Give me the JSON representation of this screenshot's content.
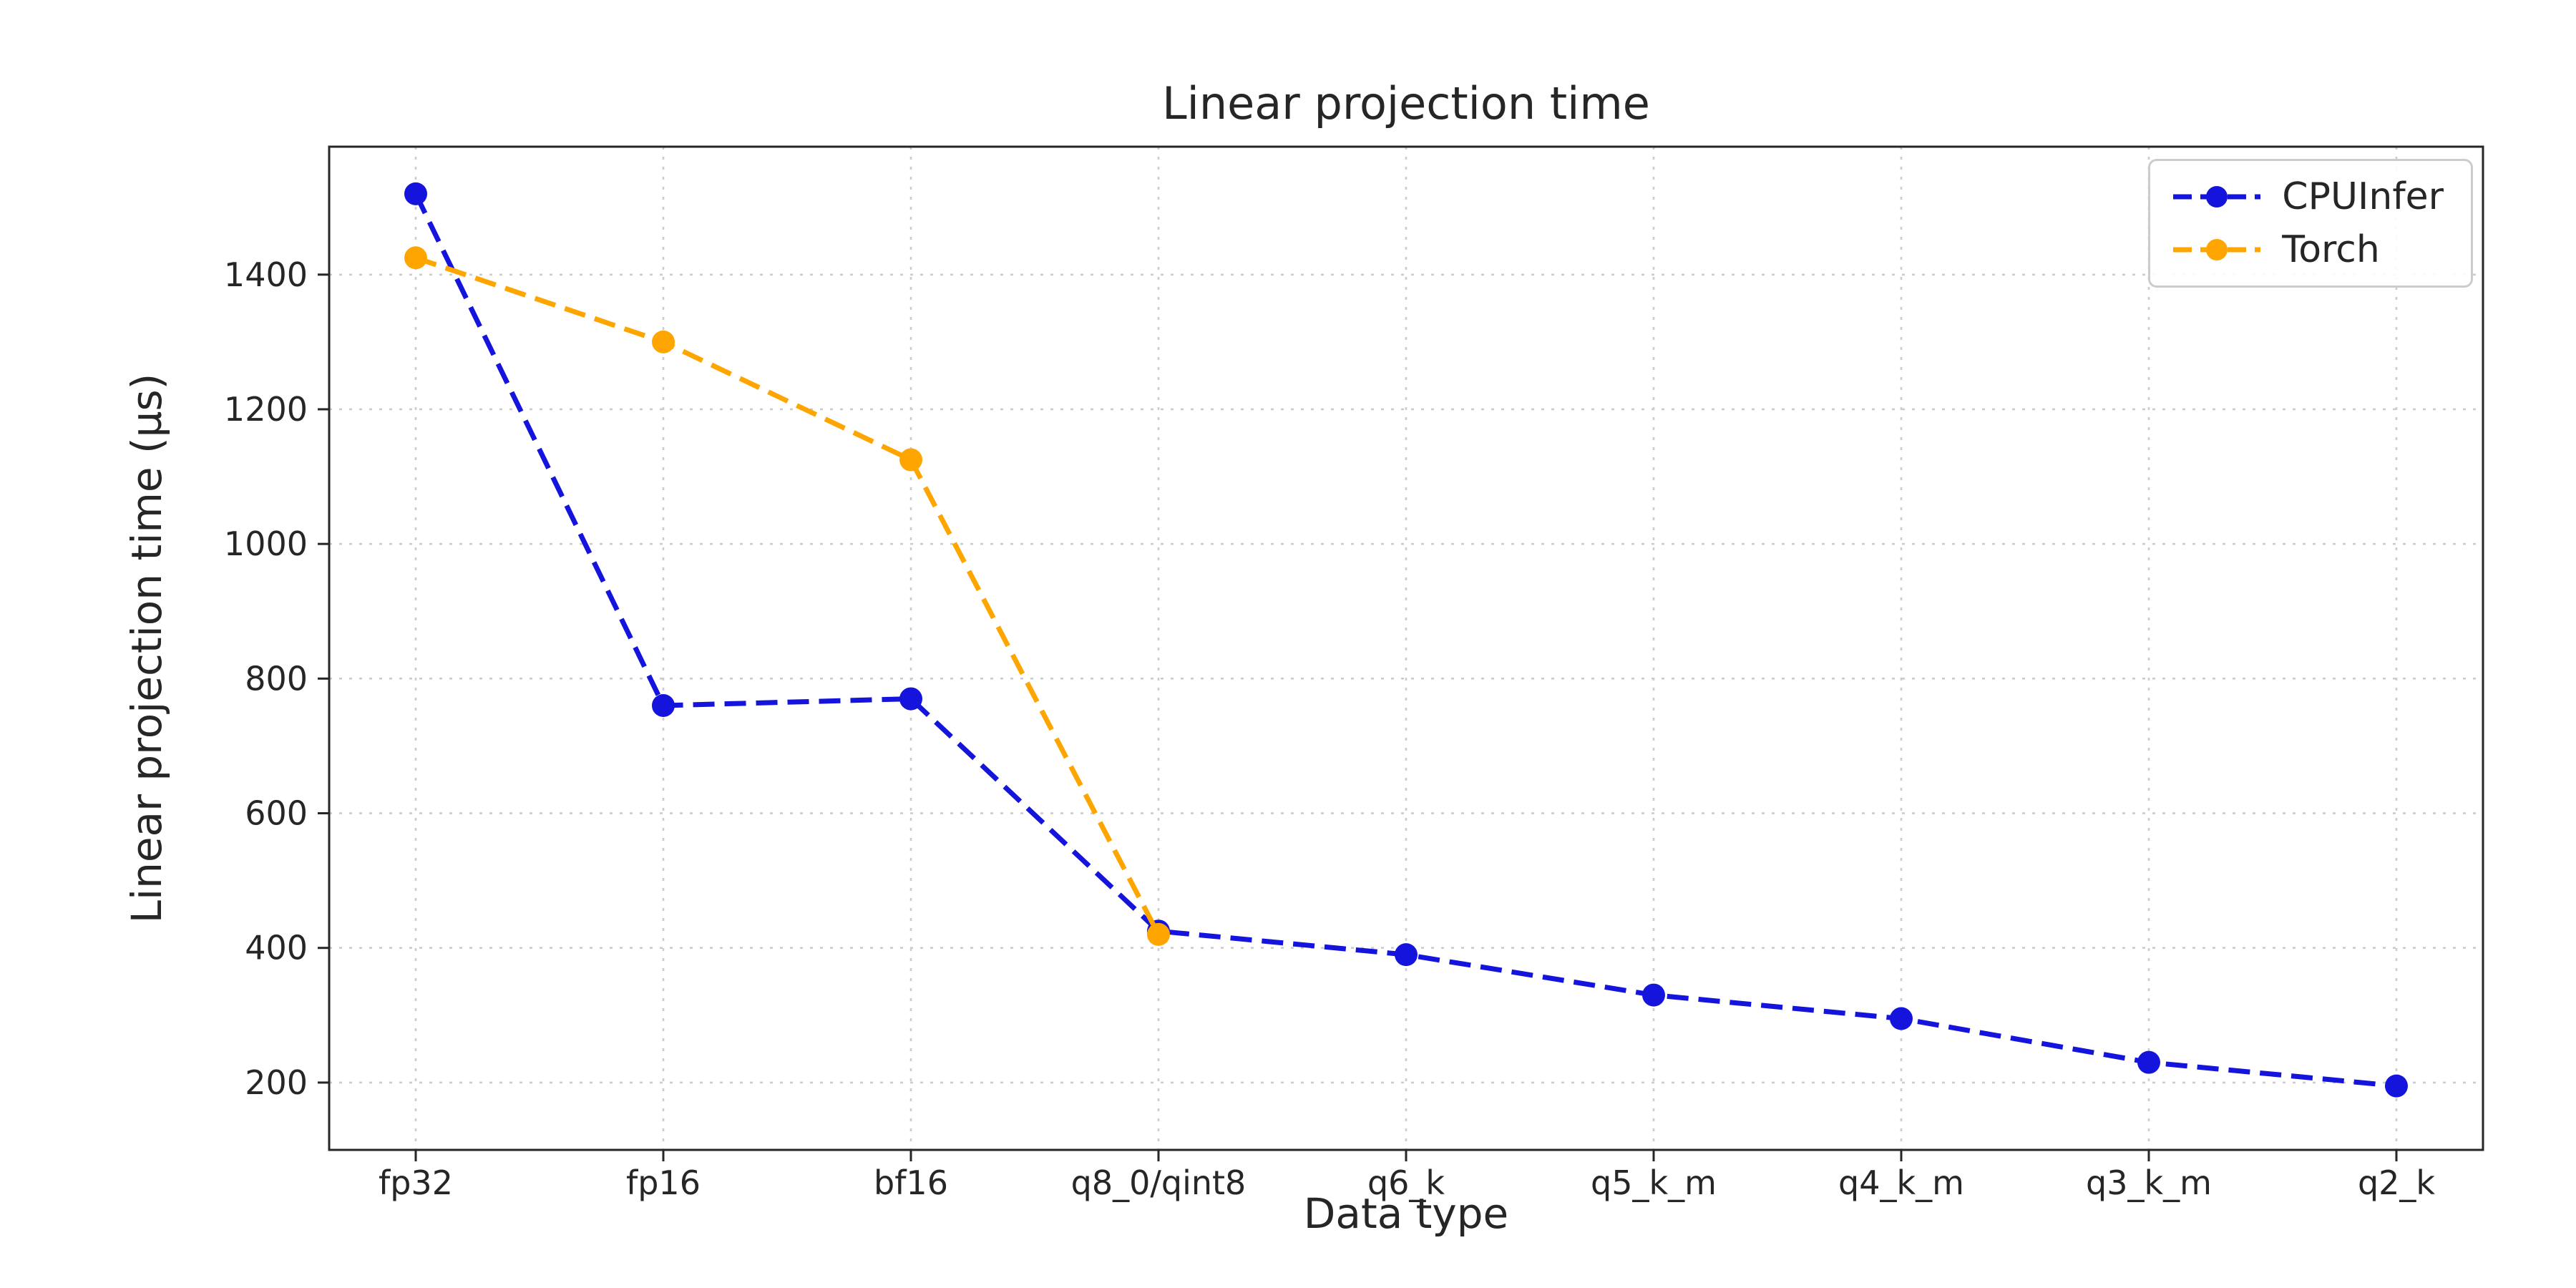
{
  "chart_data": {
    "type": "line",
    "title": "Linear projection time",
    "xlabel": "Data type",
    "ylabel": "Linear projection time (µs)",
    "categories": [
      "fp32",
      "fp16",
      "bf16",
      "q8_0/qint8",
      "q6_k",
      "q5_k_m",
      "q4_k_m",
      "q3_k_m",
      "q2_k"
    ],
    "series": [
      {
        "name": "CPUInfer",
        "color": "#1414dc",
        "values": [
          1520,
          760,
          770,
          425,
          390,
          330,
          295,
          230,
          195
        ]
      },
      {
        "name": "Torch",
        "color": "#ffa500",
        "values": [
          1425,
          1300,
          1125,
          420,
          null,
          null,
          null,
          null,
          null
        ]
      }
    ],
    "yticks": [
      200,
      400,
      600,
      800,
      1000,
      1200,
      1400
    ],
    "ylim": [
      100,
      1590
    ],
    "grid": true,
    "grid_color": "#cccccc",
    "spine_color": "#262626",
    "text_color": "#262626",
    "line_style": "dashed",
    "marker": "circle",
    "legend_position": "upper right"
  }
}
